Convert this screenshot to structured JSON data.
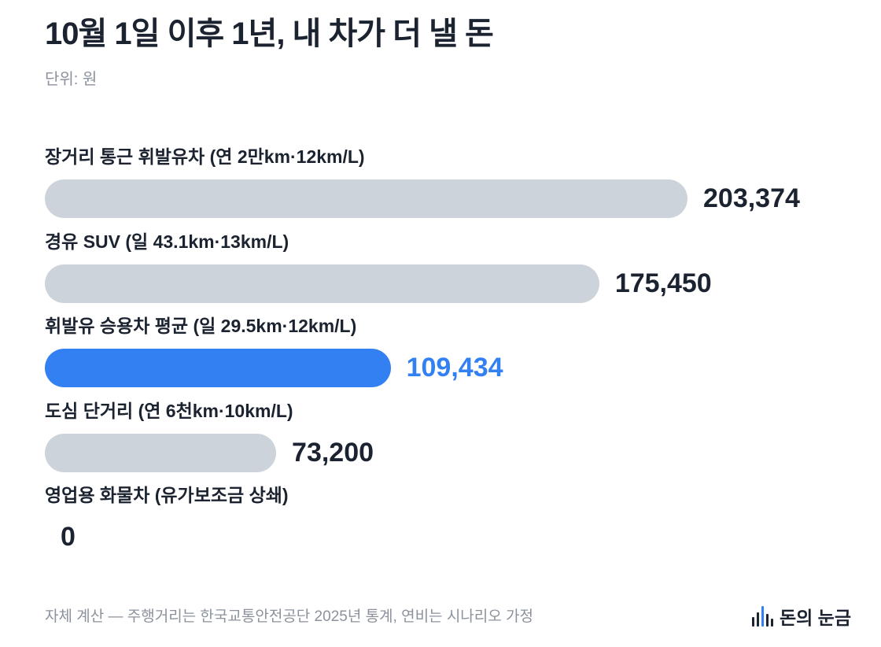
{
  "title": "10월 1일 이후 1년, 내 차가 더 낼 돈",
  "unit_label": "단위: 원",
  "footer": "자체 계산 — 주행거리는 한국교통안전공단 2025년 통계, 연비는 시나리오 가정",
  "brand": {
    "name": "돈의 눈금",
    "icon": "bar-chart-logo-icon"
  },
  "colors": {
    "bar": "#cdd3db",
    "highlight": "#3380f2",
    "text": "#1c2330",
    "muted": "#8b929c"
  },
  "chart_data": {
    "type": "bar",
    "orientation": "horizontal",
    "categories": [
      "장거리 통근 휘발유차 (연 2만km·12km/L)",
      "경유 SUV (일 43.1km·13km/L)",
      "휘발유 승용차 평균 (일 29.5km·12km/L)",
      "도심 단거리 (연 6천km·10km/L)",
      "영업용 화물차 (유가보조금 상쇄)"
    ],
    "values": [
      203374,
      175450,
      109434,
      73200,
      0
    ],
    "value_labels": [
      "203,374",
      "175,450",
      "109,434",
      "73,200",
      "0"
    ],
    "highlight_index": 2,
    "xlim": [
      0,
      203374
    ],
    "grid": false,
    "legend": "none"
  }
}
